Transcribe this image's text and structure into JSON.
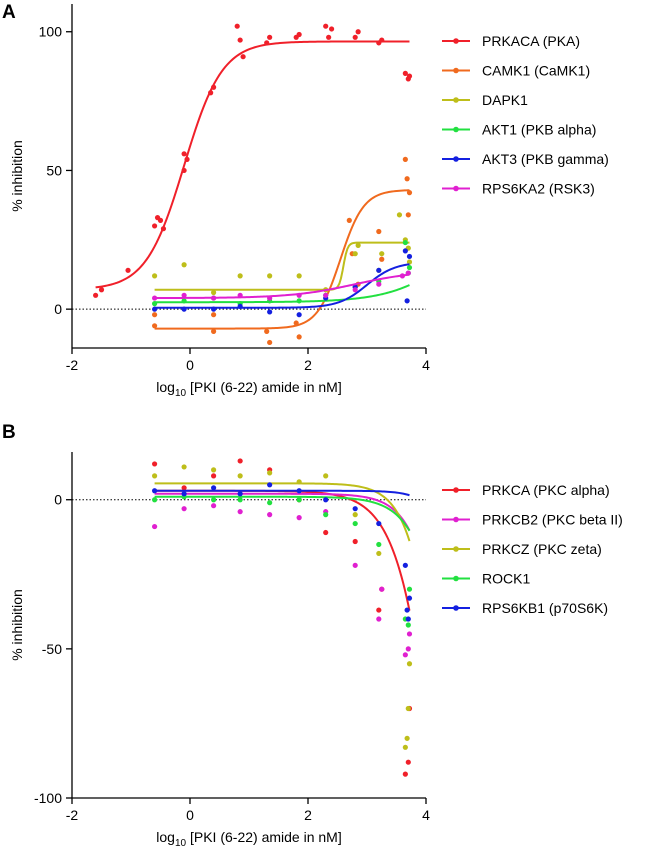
{
  "chart_data": [
    {
      "type": "scatter",
      "panel": "A",
      "xlabel_prefix": "log",
      "xlabel_sub": "10",
      "xlabel_suffix": " [PKI (6-22) amide in nM]",
      "ylabel": "% inhibition",
      "xlim": [
        -2,
        4
      ],
      "ylim": [
        -14,
        110
      ],
      "xticks": [
        -2,
        0,
        2,
        4
      ],
      "xtick_labels": [
        "-2",
        "0",
        "2",
        "4"
      ],
      "yticks": [
        0,
        50,
        100
      ],
      "ytick_labels": [
        "0",
        "50",
        "100"
      ],
      "reference_line": 0,
      "legend_position": "right",
      "series": [
        {
          "name": "PRKACA (PKA)",
          "color": "#f0202a",
          "fit": {
            "model": "sigmoid",
            "bottom": 7,
            "top": 96.5,
            "ec50": -0.1,
            "slope": 1.35
          },
          "points": [
            [
              -1.6,
              5
            ],
            [
              -1.5,
              7
            ],
            [
              -1.05,
              14
            ],
            [
              -0.6,
              30
            ],
            [
              -0.55,
              33
            ],
            [
              -0.5,
              32
            ],
            [
              -0.45,
              29
            ],
            [
              -0.1,
              56
            ],
            [
              -0.05,
              54
            ],
            [
              -0.1,
              50
            ],
            [
              0.35,
              78
            ],
            [
              0.4,
              80
            ],
            [
              0.8,
              102
            ],
            [
              0.85,
              97
            ],
            [
              0.9,
              91
            ],
            [
              1.3,
              96
            ],
            [
              1.35,
              98
            ],
            [
              1.8,
              98
            ],
            [
              1.85,
              99
            ],
            [
              2.3,
              102
            ],
            [
              2.35,
              98
            ],
            [
              2.4,
              101
            ],
            [
              2.8,
              98
            ],
            [
              2.85,
              100
            ],
            [
              3.2,
              96
            ],
            [
              3.25,
              97
            ],
            [
              3.65,
              85
            ],
            [
              3.7,
              83
            ],
            [
              3.72,
              84
            ]
          ]
        },
        {
          "name": "CAMK1 (CaMK1)",
          "color": "#f06a1e",
          "fit": {
            "model": "sigmoid",
            "bottom": -7,
            "top": 43,
            "ec50": 2.55,
            "slope": 2.2
          },
          "points": [
            [
              -0.6,
              -6
            ],
            [
              -0.6,
              -2
            ],
            [
              0.4,
              -2
            ],
            [
              0.4,
              -8
            ],
            [
              1.3,
              -8
            ],
            [
              1.35,
              -12
            ],
            [
              1.8,
              -5
            ],
            [
              1.85,
              -10
            ],
            [
              2.7,
              32
            ],
            [
              2.75,
              20
            ],
            [
              2.85,
              9
            ],
            [
              3.2,
              28
            ],
            [
              3.25,
              18
            ],
            [
              3.65,
              54
            ],
            [
              3.68,
              47
            ],
            [
              3.72,
              42
            ],
            [
              3.7,
              34
            ]
          ]
        },
        {
          "name": "DAPK1",
          "color": "#bebe1a",
          "fit": {
            "model": "sigmoid",
            "bottom": 7,
            "top": 24,
            "ec50": 2.6,
            "slope": 12
          },
          "points": [
            [
              -0.6,
              12
            ],
            [
              -0.1,
              16
            ],
            [
              0.4,
              6
            ],
            [
              0.85,
              12
            ],
            [
              1.35,
              12
            ],
            [
              1.85,
              12
            ],
            [
              2.3,
              7
            ],
            [
              2.8,
              20
            ],
            [
              2.85,
              23
            ],
            [
              3.2,
              14
            ],
            [
              3.25,
              20
            ],
            [
              3.55,
              34
            ],
            [
              3.65,
              25
            ],
            [
              3.7,
              22
            ],
            [
              3.72,
              17
            ]
          ]
        },
        {
          "name": "AKT1 (PKB alpha)",
          "color": "#22e040",
          "fit": {
            "model": "sigmoid",
            "bottom": 2.5,
            "top": 40,
            "ec50": 4.6,
            "slope": 0.8
          },
          "points": [
            [
              -0.6,
              2
            ],
            [
              -0.1,
              3
            ],
            [
              0.4,
              4
            ],
            [
              0.85,
              2
            ],
            [
              1.35,
              3
            ],
            [
              1.85,
              3
            ],
            [
              2.3,
              5
            ],
            [
              2.8,
              8
            ],
            [
              3.2,
              10
            ],
            [
              3.65,
              24
            ],
            [
              3.7,
              13
            ],
            [
              3.72,
              15
            ]
          ]
        },
        {
          "name": "AKT3 (PKB gamma)",
          "color": "#1420e0",
          "fit": {
            "model": "sigmoid",
            "bottom": 0.5,
            "top": 17,
            "ec50": 3.0,
            "slope": 1.8
          },
          "points": [
            [
              -0.6,
              0
            ],
            [
              -0.1,
              0
            ],
            [
              0.4,
              0
            ],
            [
              0.85,
              1
            ],
            [
              1.35,
              -1
            ],
            [
              1.85,
              -2
            ],
            [
              2.3,
              4
            ],
            [
              2.8,
              8
            ],
            [
              3.2,
              14
            ],
            [
              3.65,
              21
            ],
            [
              3.68,
              3
            ],
            [
              3.72,
              19
            ]
          ]
        },
        {
          "name": "RPS6KA2 (RSK3)",
          "color": "#e020d0",
          "fit": {
            "model": "sigmoid",
            "bottom": 4,
            "top": 14,
            "ec50": 2.8,
            "slope": 0.8
          },
          "points": [
            [
              -0.6,
              4
            ],
            [
              -0.1,
              5
            ],
            [
              0.4,
              4
            ],
            [
              0.85,
              5
            ],
            [
              1.35,
              4
            ],
            [
              1.85,
              5
            ],
            [
              2.3,
              5
            ],
            [
              2.8,
              7
            ],
            [
              3.2,
              9
            ],
            [
              3.6,
              12
            ],
            [
              3.7,
              13
            ]
          ]
        }
      ]
    },
    {
      "type": "scatter",
      "panel": "B",
      "xlabel_prefix": "log",
      "xlabel_sub": "10",
      "xlabel_suffix": " [PKI (6-22) amide in nM]",
      "ylabel": "% inhibition",
      "xlim": [
        -2,
        4
      ],
      "ylim": [
        -100,
        16
      ],
      "xticks": [
        -2,
        0,
        2,
        4
      ],
      "xtick_labels": [
        "-2",
        "0",
        "2",
        "4"
      ],
      "yticks": [
        0,
        -50,
        -100
      ],
      "ytick_labels": [
        "0",
        "-50",
        "-100"
      ],
      "reference_line": 0,
      "legend_position": "right",
      "series": [
        {
          "name": "PRKCA (PKC alpha)",
          "color": "#f0202a",
          "fit": {
            "model": "sigmoid",
            "bottom": 3,
            "top": -300,
            "ec50": 4.4,
            "slope": 1.2
          },
          "points": [
            [
              -0.6,
              12
            ],
            [
              -0.1,
              4
            ],
            [
              0.4,
              8
            ],
            [
              0.85,
              13
            ],
            [
              1.35,
              10
            ],
            [
              1.85,
              0
            ],
            [
              2.3,
              -11
            ],
            [
              2.8,
              -14
            ],
            [
              3.2,
              -37
            ],
            [
              3.25,
              -30
            ],
            [
              3.65,
              -92
            ],
            [
              3.7,
              -88
            ],
            [
              3.72,
              -70
            ]
          ]
        },
        {
          "name": "PRKCB2 (PKC beta II)",
          "color": "#e020d0",
          "fit": {
            "model": "sigmoid",
            "bottom": 2,
            "top": -300,
            "ec50": 4.7,
            "slope": 1.4
          },
          "points": [
            [
              -0.6,
              -9
            ],
            [
              -0.1,
              -3
            ],
            [
              0.4,
              -2
            ],
            [
              0.85,
              -4
            ],
            [
              1.35,
              -5
            ],
            [
              1.85,
              -6
            ],
            [
              2.3,
              -4
            ],
            [
              2.8,
              -22
            ],
            [
              3.2,
              -40
            ],
            [
              3.25,
              -30
            ],
            [
              3.65,
              -52
            ],
            [
              3.7,
              -50
            ],
            [
              3.72,
              -45
            ]
          ]
        },
        {
          "name": "PRKCZ (PKC zeta)",
          "color": "#bebe1a",
          "fit": {
            "model": "sigmoid",
            "bottom": 5.5,
            "top": -300,
            "ec50": 4.5,
            "slope": 1.5
          },
          "points": [
            [
              -0.6,
              8
            ],
            [
              -0.1,
              11
            ],
            [
              0.4,
              10
            ],
            [
              0.85,
              8
            ],
            [
              1.35,
              9
            ],
            [
              1.85,
              6
            ],
            [
              2.3,
              8
            ],
            [
              2.8,
              -5
            ],
            [
              3.2,
              -18
            ],
            [
              3.65,
              -83
            ],
            [
              3.68,
              -80
            ],
            [
              3.7,
              -70
            ],
            [
              3.72,
              -55
            ]
          ]
        },
        {
          "name": "ROCK1",
          "color": "#22e040",
          "fit": {
            "model": "sigmoid",
            "bottom": 1,
            "top": -300,
            "ec50": 4.8,
            "slope": 1.3
          },
          "points": [
            [
              -0.6,
              0
            ],
            [
              -0.1,
              1
            ],
            [
              0.4,
              0
            ],
            [
              0.85,
              0
            ],
            [
              1.35,
              -1
            ],
            [
              1.85,
              0
            ],
            [
              2.3,
              -5
            ],
            [
              2.8,
              -8
            ],
            [
              3.2,
              -15
            ],
            [
              3.65,
              -40
            ],
            [
              3.7,
              -42
            ],
            [
              3.72,
              -30
            ]
          ]
        },
        {
          "name": "RPS6KB1 (p70S6K)",
          "color": "#1420e0",
          "fit": {
            "model": "sigmoid",
            "bottom": 3,
            "top": -300,
            "ec50": 5.0,
            "slope": 1.8
          },
          "points": [
            [
              -0.6,
              3
            ],
            [
              -0.1,
              2
            ],
            [
              0.4,
              4
            ],
            [
              0.85,
              2
            ],
            [
              1.35,
              5
            ],
            [
              1.85,
              3
            ],
            [
              2.3,
              0
            ],
            [
              2.8,
              -3
            ],
            [
              3.2,
              -8
            ],
            [
              3.65,
              -22
            ],
            [
              3.68,
              -37
            ],
            [
              3.7,
              -40
            ],
            [
              3.72,
              -33
            ]
          ]
        }
      ]
    }
  ]
}
